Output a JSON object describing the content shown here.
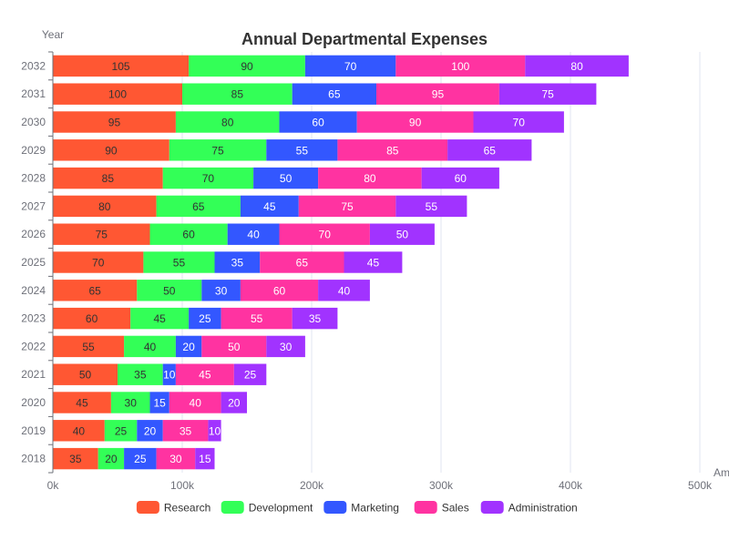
{
  "chart_data": {
    "type": "bar",
    "orientation": "horizontal",
    "stacked": true,
    "title": "Annual Departmental Expenses",
    "ylabel": "Year",
    "xlabel": "Am",
    "xlim": [
      0,
      500000
    ],
    "x_ticks": [
      {
        "value": 0,
        "label": "0k"
      },
      {
        "value": 100000,
        "label": "100k"
      },
      {
        "value": 200000,
        "label": "200k"
      },
      {
        "value": 300000,
        "label": "300k"
      },
      {
        "value": 400000,
        "label": "400k"
      },
      {
        "value": 500000,
        "label": "500k"
      }
    ],
    "grid": true,
    "legend_position": "bottom",
    "categories": [
      "2018",
      "2019",
      "2020",
      "2021",
      "2022",
      "2023",
      "2024",
      "2025",
      "2026",
      "2027",
      "2028",
      "2029",
      "2030",
      "2031",
      "2032"
    ],
    "series": [
      {
        "name": "Research",
        "color": "#FF5733",
        "labels": [
          "35",
          "40",
          "45",
          "50",
          "55",
          "60",
          "65",
          "70",
          "75",
          "80",
          "85",
          "90",
          "95",
          "100",
          "105"
        ],
        "values": [
          35000,
          40000,
          45000,
          50000,
          55000,
          60000,
          65000,
          70000,
          75000,
          80000,
          85000,
          90000,
          95000,
          100000,
          105000
        ]
      },
      {
        "name": "Development",
        "color": "#33FF57",
        "labels": [
          "20",
          "25",
          "30",
          "35",
          "40",
          "45",
          "50",
          "55",
          "60",
          "65",
          "70",
          "75",
          "80",
          "85",
          "90"
        ],
        "values": [
          20000,
          25000,
          30000,
          35000,
          40000,
          45000,
          50000,
          55000,
          60000,
          65000,
          70000,
          75000,
          80000,
          85000,
          90000
        ]
      },
      {
        "name": "Marketing",
        "color": "#3357FF",
        "labels": [
          "25",
          "20",
          "15",
          "10",
          "20",
          "25",
          "30",
          "35",
          "40",
          "45",
          "50",
          "55",
          "60",
          "65",
          "70"
        ],
        "values": [
          25000,
          20000,
          15000,
          10000,
          20000,
          25000,
          30000,
          35000,
          40000,
          45000,
          50000,
          55000,
          60000,
          65000,
          70000
        ]
      },
      {
        "name": "Sales",
        "color": "#FF33A1",
        "labels": [
          "30",
          "35",
          "40",
          "45",
          "50",
          "55",
          "60",
          "65",
          "70",
          "75",
          "80",
          "85",
          "90",
          "95",
          "100"
        ],
        "values": [
          30000,
          35000,
          40000,
          45000,
          50000,
          55000,
          60000,
          65000,
          70000,
          75000,
          80000,
          85000,
          90000,
          95000,
          100000
        ]
      },
      {
        "name": "Administration",
        "color": "#A133FF",
        "labels": [
          "15",
          "10",
          "20",
          "25",
          "30",
          "35",
          "40",
          "45",
          "50",
          "55",
          "60",
          "65",
          "70",
          "75",
          "80"
        ],
        "values": [
          15000,
          10000,
          20000,
          25000,
          30000,
          35000,
          40000,
          45000,
          50000,
          55000,
          60000,
          65000,
          70000,
          75000,
          80000
        ]
      }
    ]
  }
}
